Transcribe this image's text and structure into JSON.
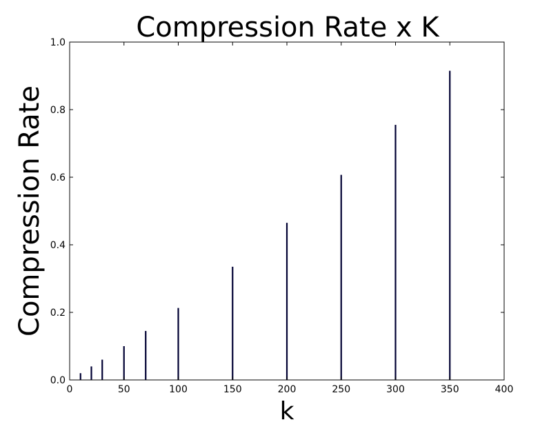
{
  "chart_data": {
    "type": "bar",
    "title": "Compression Rate x K",
    "xlabel": "k",
    "ylabel": "Compression Rate",
    "x": [
      10,
      20,
      30,
      50,
      70,
      100,
      150,
      200,
      250,
      300,
      350
    ],
    "values": [
      0.02,
      0.04,
      0.06,
      0.1,
      0.145,
      0.213,
      0.335,
      0.465,
      0.607,
      0.755,
      0.915
    ],
    "xlim": [
      0,
      400
    ],
    "ylim": [
      0,
      1.0
    ],
    "xticks": [
      0,
      50,
      100,
      150,
      200,
      250,
      300,
      350,
      400
    ],
    "xtick_labels": [
      "0",
      "50",
      "100",
      "150",
      "200",
      "250",
      "300",
      "350",
      "400"
    ],
    "yticks": [
      0.0,
      0.2,
      0.4,
      0.6,
      0.8,
      1.0
    ],
    "ytick_labels": [
      "0.0",
      "0.2",
      "0.4",
      "0.6",
      "0.8",
      "1.0"
    ],
    "bar_color": "#000033",
    "grid": false,
    "legend": "none"
  }
}
